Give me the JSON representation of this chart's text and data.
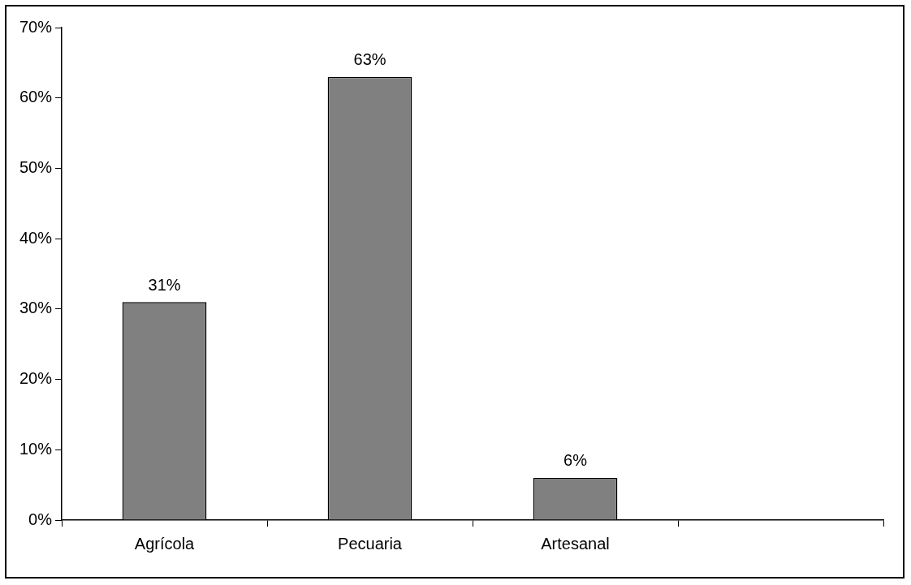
{
  "chart_data": {
    "type": "bar",
    "categories": [
      "Agrícola",
      "Pecuaria",
      "Artesanal",
      null
    ],
    "values": [
      31,
      63,
      6,
      null
    ],
    "value_labels": [
      "31%",
      "63%",
      "6%",
      null
    ],
    "color": "#808080",
    "ylim": [
      0,
      70
    ],
    "yticks": [
      {
        "value": 0,
        "label": "0%"
      },
      {
        "value": 10,
        "label": "10%"
      },
      {
        "value": 20,
        "label": "20%"
      },
      {
        "value": 30,
        "label": "30%"
      },
      {
        "value": 40,
        "label": "40%"
      },
      {
        "value": 50,
        "label": "50%"
      },
      {
        "value": 60,
        "label": "60%"
      },
      {
        "value": 70,
        "label": "70%"
      }
    ]
  }
}
